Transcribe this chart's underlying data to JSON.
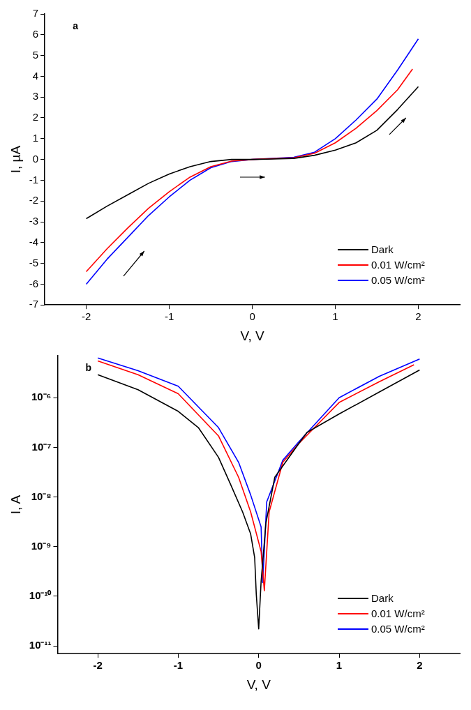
{
  "chart_data": [
    {
      "type": "line",
      "xlabel": "V, V",
      "ylabel": "I, µA",
      "annotations": [
        "a"
      ],
      "xlim": [
        -2.5,
        2.5
      ],
      "xticks": [
        -2,
        -1,
        0,
        1,
        2
      ],
      "ylim": [
        -7,
        7
      ],
      "yticks": [
        -7,
        -6,
        -5,
        -4,
        -3,
        -2,
        -1,
        0,
        1,
        2,
        3,
        4,
        5,
        6,
        7
      ],
      "grid": false,
      "legend": "bottom right",
      "marker": "none",
      "line_style": "solid",
      "series": [
        {
          "name": "Dark",
          "color": "#000000",
          "x": [
            -2,
            -1.75,
            -1.5,
            -1.25,
            -1,
            -0.75,
            -0.5,
            -0.25,
            0,
            0.25,
            0.5,
            0.75,
            1,
            1.25,
            1.5,
            1.75,
            2
          ],
          "values": [
            -2.85,
            -2.25,
            -1.7,
            -1.15,
            -0.7,
            -0.35,
            -0.1,
            0,
            0,
            0.02,
            0.05,
            0.2,
            0.45,
            0.8,
            1.4,
            2.4,
            3.5
          ]
        },
        {
          "name": "0.01 W/cm²",
          "color": "#ff0000",
          "x": [
            -2,
            -1.75,
            -1.5,
            -1.25,
            -1,
            -0.75,
            -0.5,
            -0.25,
            0,
            0.5,
            0.75,
            1,
            1.25,
            1.5,
            1.75,
            1.93
          ],
          "values": [
            -5.4,
            -4.3,
            -3.3,
            -2.35,
            -1.55,
            -0.85,
            -0.35,
            -0.08,
            0,
            0.08,
            0.3,
            0.8,
            1.5,
            2.35,
            3.35,
            4.35
          ]
        },
        {
          "name": "0.05 W/cm²",
          "color": "#0000ff",
          "x": [
            -2,
            -1.75,
            -1.5,
            -1.25,
            -1,
            -0.75,
            -0.5,
            -0.25,
            0,
            0.5,
            0.75,
            1,
            1.25,
            1.5,
            1.75,
            2
          ],
          "values": [
            -6.0,
            -4.8,
            -3.75,
            -2.7,
            -1.8,
            -1.0,
            -0.4,
            -0.1,
            0,
            0.1,
            0.35,
            1.0,
            1.9,
            2.9,
            4.3,
            5.8
          ]
        }
      ]
    },
    {
      "type": "line",
      "xlabel": "V, V",
      "ylabel": "I, A",
      "annotations": [
        "b"
      ],
      "log": "y",
      "xlim": [
        -2.5,
        2.5
      ],
      "xticks": [
        -2,
        -1,
        0,
        1,
        2
      ],
      "ylim": [
        7e-12,
        7e-06
      ],
      "yticks": [
        {
          "value": 1e-11,
          "label": "10⁻¹¹"
        },
        {
          "value": 1e-10,
          "label": "10⁻¹⁰"
        },
        {
          "value": 1e-09,
          "label": "10⁻⁹"
        },
        {
          "value": 1e-08,
          "label": "10⁻⁸"
        },
        {
          "value": 1e-07,
          "label": "10⁻⁷"
        },
        {
          "value": 1e-06,
          "label": "10⁻⁶"
        }
      ],
      "grid": false,
      "legend": "bottom right",
      "marker": "none",
      "line_style": "solid",
      "series": [
        {
          "name": "Dark",
          "color": "#000000",
          "x": [
            -2,
            -1.5,
            -1,
            -0.75,
            -0.5,
            -0.35,
            -0.2,
            -0.1,
            -0.05,
            -0.03,
            0,
            0.03,
            0.09,
            0.2,
            0.5,
            0.6,
            1,
            1.5,
            2
          ],
          "values": [
            2.9e-06,
            1.45e-06,
            5.3e-07,
            2.5e-07,
            6.3e-08,
            1.8e-08,
            5e-09,
            1.8e-09,
            6e-10,
            1.1e-10,
            2.2e-11,
            2e-10,
            3e-09,
            2.5e-08,
            1.2e-07,
            2e-07,
            4.7e-07,
            1.3e-06,
            3.6e-06
          ]
        },
        {
          "name": "0.01 W/cm²",
          "color": "#ff0000",
          "x": [
            -2,
            -1.5,
            -1,
            -0.5,
            -0.25,
            -0.1,
            0.03,
            0.07,
            0.13,
            0.3,
            0.5,
            1,
            1.5,
            1.93
          ],
          "values": [
            5.5e-06,
            2.9e-06,
            1.2e-06,
            1.7e-07,
            2.5e-08,
            5e-09,
            8e-10,
            1.3e-10,
            5e-09,
            5e-08,
            1.2e-07,
            8e-07,
            2.1e-06,
            4.6e-06
          ]
        },
        {
          "name": "0.05 W/cm²",
          "color": "#0000ff",
          "x": [
            -2,
            -1.5,
            -1,
            -0.5,
            -0.25,
            -0.1,
            0.03,
            0.05,
            0.1,
            0.3,
            0.5,
            1,
            1.5,
            2
          ],
          "values": [
            6.3e-06,
            3.5e-06,
            1.7e-06,
            2.5e-07,
            5e-08,
            1.1e-08,
            2.5e-09,
            1.9e-10,
            8e-09,
            5.5e-08,
            1.3e-07,
            1e-06,
            2.7e-06,
            6e-06
          ]
        }
      ]
    }
  ]
}
